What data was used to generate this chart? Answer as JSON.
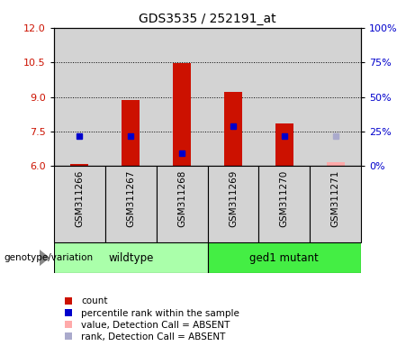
{
  "title": "GDS3535 / 252191_at",
  "samples": [
    "GSM311266",
    "GSM311267",
    "GSM311268",
    "GSM311269",
    "GSM311270",
    "GSM311271"
  ],
  "count_values": [
    6.1,
    8.85,
    10.45,
    9.2,
    7.85,
    6.15
  ],
  "rank_values": [
    7.3,
    7.3,
    6.55,
    7.75,
    7.3,
    7.3
  ],
  "is_absent": [
    false,
    false,
    false,
    false,
    false,
    true
  ],
  "count_color_present": "#cc1100",
  "count_color_absent": "#ffaaaa",
  "rank_color_present": "#0000cc",
  "rank_color_absent": "#aaaacc",
  "ylim_left": [
    6,
    12
  ],
  "ylim_right": [
    0,
    100
  ],
  "yticks_left": [
    6,
    7.5,
    9,
    10.5,
    12
  ],
  "yticks_right": [
    0,
    25,
    50,
    75,
    100
  ],
  "dotted_lines": [
    7.5,
    9.0,
    10.5
  ],
  "bar_width": 0.35,
  "marker_size": 5,
  "bg_color_plot": "#d3d3d3",
  "bg_color_wildtype": "#aaffaa",
  "bg_color_mutant": "#44ee44",
  "legend_items": [
    {
      "label": "count",
      "color": "#cc1100"
    },
    {
      "label": "percentile rank within the sample",
      "color": "#0000cc"
    },
    {
      "label": "value, Detection Call = ABSENT",
      "color": "#ffaaaa"
    },
    {
      "label": "rank, Detection Call = ABSENT",
      "color": "#aaaacc"
    }
  ]
}
